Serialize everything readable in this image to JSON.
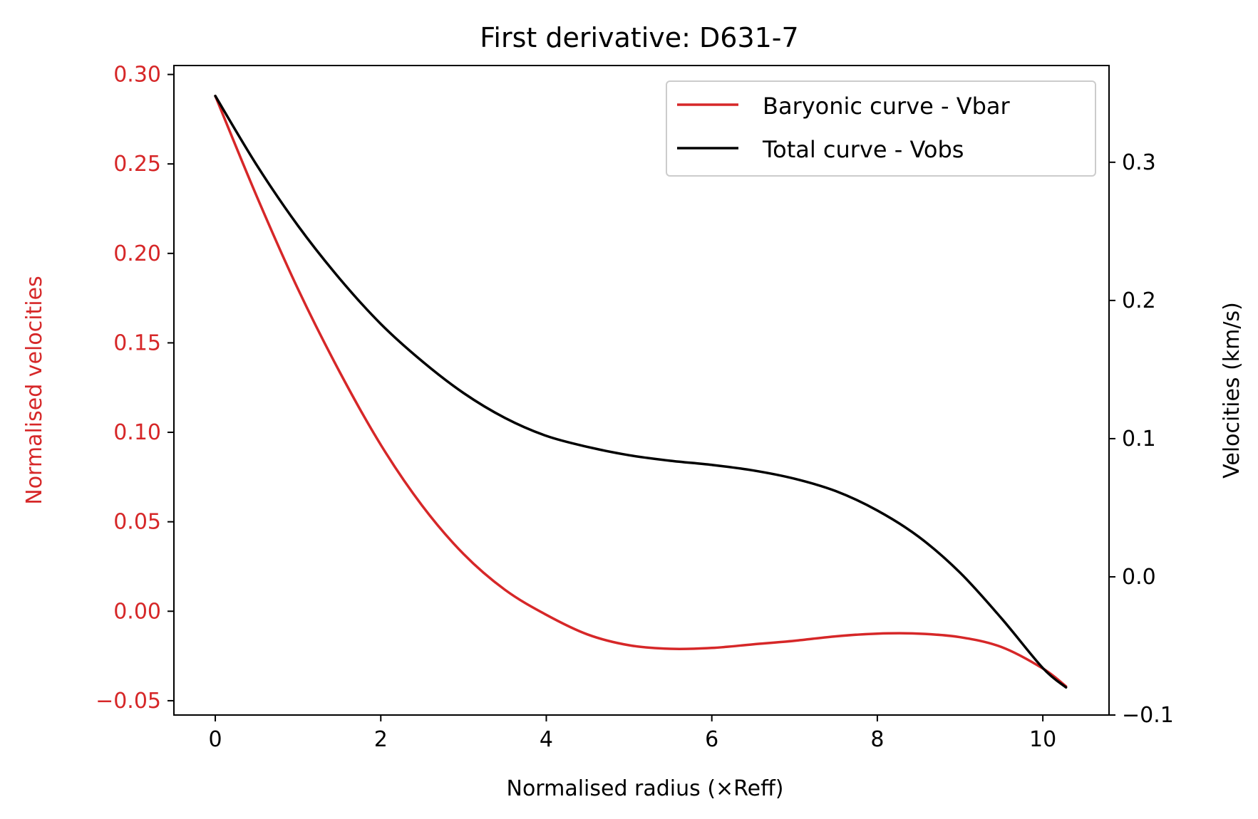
{
  "chart_data": {
    "type": "line",
    "title": "First derivative: D631-7",
    "xlabel": "Normalised radius (×Reff)",
    "ylabel_left": "Normalised velocities",
    "ylabel_right": "Velocities (km/s)",
    "xlim": [
      -0.5,
      10.8
    ],
    "ylim_left": [
      -0.058,
      0.305
    ],
    "ylim_right": [
      -0.1,
      0.37
    ],
    "x_ticks": [
      "0",
      "2",
      "4",
      "6",
      "8",
      "10"
    ],
    "y_left_ticks": [
      "0.30",
      "0.25",
      "0.20",
      "0.15",
      "0.10",
      "0.05",
      "0.00",
      "−0.05"
    ],
    "y_right_ticks": [
      "0.3",
      "0.2",
      "0.1",
      "0.0",
      "−0.1"
    ],
    "grid": false,
    "legend_position": "top-right",
    "colors": {
      "left_axis": "#d62728",
      "vbar": "#d62728",
      "vobs": "#000000"
    },
    "series": [
      {
        "name": "Baryonic curve - Vbar",
        "axis": "left",
        "color": "#d62728",
        "x": [
          0,
          0.5,
          1,
          1.5,
          2,
          2.5,
          3,
          3.5,
          4,
          4.5,
          5,
          5.5,
          6,
          6.5,
          7,
          7.5,
          8,
          8.5,
          9,
          9.5,
          10,
          10.28
        ],
        "y": [
          0.288,
          0.232,
          0.18,
          0.134,
          0.093,
          0.059,
          0.032,
          0.012,
          -0.002,
          -0.013,
          -0.019,
          -0.021,
          -0.0205,
          -0.0185,
          -0.0165,
          -0.014,
          -0.0125,
          -0.0125,
          -0.0145,
          -0.02,
          -0.032,
          -0.042
        ]
      },
      {
        "name": "Total curve - Vobs",
        "axis": "right",
        "color": "#000000",
        "x": [
          0,
          0.5,
          1,
          1.5,
          2,
          2.5,
          3,
          3.5,
          4,
          4.5,
          5,
          5.5,
          6,
          6.5,
          7,
          7.5,
          8,
          8.5,
          9,
          9.5,
          10,
          10.28
        ],
        "y": [
          0.348,
          0.298,
          0.254,
          0.216,
          0.183,
          0.156,
          0.133,
          0.115,
          0.102,
          0.094,
          0.088,
          0.084,
          0.081,
          0.077,
          0.071,
          0.062,
          0.048,
          0.029,
          0.003,
          -0.03,
          -0.066,
          -0.08
        ]
      }
    ]
  }
}
